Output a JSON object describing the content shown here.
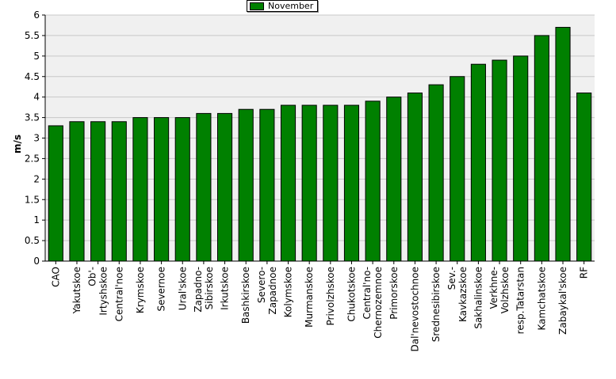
{
  "chart_data": {
    "type": "bar",
    "categories": [
      "CAO",
      "Yakutskoe",
      "Ob'-Irtyshskoe",
      "Central'noe",
      "Krymskoe",
      "Severnoe",
      "Ural'skoe",
      "Zapadno-Sibirskoe",
      "Irkutskoe",
      "Bashkirskoe",
      "Severo-Zapadnoe",
      "Kolymskoe",
      "Murmanskoe",
      "Privolzhskoe",
      "Chukotskoe",
      "Central'no-Chernozemnoe",
      "Primorskoe",
      "Dal'nevostochnoe",
      "Srednesibirskoe",
      "Sev.-Kavkazskoe",
      "Sakhalinskoe",
      "Verkhne-Volzhskoe",
      "resp.Tatarstan",
      "Kamchatskoe",
      "Zabaykal'skoe",
      "RF"
    ],
    "tick_labels": [
      [
        "CAO"
      ],
      [
        "Yakutskoe"
      ],
      [
        "Ob'-",
        "Irtyshskoe"
      ],
      [
        "Central'noe"
      ],
      [
        "Krymskoe"
      ],
      [
        "Severnoe"
      ],
      [
        "Ural'skoe"
      ],
      [
        "Zapadno-",
        "Sibirskoe"
      ],
      [
        "Irkutskoe"
      ],
      [
        "Bashkirskoe"
      ],
      [
        "Severo-",
        "Zapadnoe"
      ],
      [
        "Kolymskoe"
      ],
      [
        "Murmanskoe"
      ],
      [
        "Privolzhskoe"
      ],
      [
        "Chukotskoe"
      ],
      [
        "Central'no-",
        "Chernozemnoe"
      ],
      [
        "Primorskoe"
      ],
      [
        "Dal'nevostochnoe"
      ],
      [
        "Srednesibirskoe"
      ],
      [
        "Sev.-",
        "Kavkazskoe"
      ],
      [
        "Sakhalinskoe"
      ],
      [
        "Verkhne-",
        "Volzhskoe"
      ],
      [
        "resp.Tatarstan"
      ],
      [
        "Kamchatskoe"
      ],
      [
        "Zabaykal'skoe"
      ],
      [
        "RF"
      ]
    ],
    "series": [
      {
        "name": "November",
        "values": [
          3.3,
          3.4,
          3.4,
          3.4,
          3.5,
          3.5,
          3.5,
          3.6,
          3.6,
          3.7,
          3.7,
          3.8,
          3.8,
          3.8,
          3.8,
          3.9,
          4.0,
          4.1,
          4.3,
          4.5,
          4.8,
          4.9,
          5.0,
          5.5,
          5.7,
          4.1
        ]
      }
    ],
    "ylabel": "m/s",
    "xlabel": "",
    "title": "",
    "ylim": [
      0,
      6
    ],
    "yticks": [
      "0",
      "0.5",
      "1",
      "1.5",
      "2",
      "2.5",
      "3",
      "3.5",
      "4",
      "4.5",
      "5",
      "5.5",
      "6"
    ],
    "grid": true,
    "legend_position": "top-center"
  },
  "colors": {
    "bar": "#008000",
    "plot_background": "#f0f0f0",
    "grid": "#c8c8c8"
  }
}
